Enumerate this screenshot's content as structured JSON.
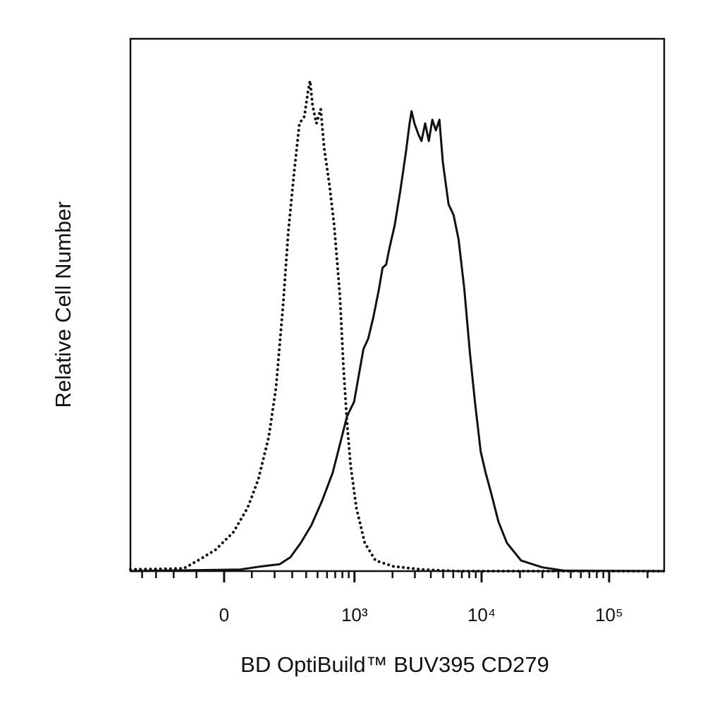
{
  "chart_data": {
    "type": "line",
    "x_label": "BD OptiBuild™ BUV395 CD279",
    "y_label": "Relative Cell Number",
    "xscale": "biexponential",
    "xlim": [
      -503,
      270000
    ],
    "ylim": [
      0,
      100
    ],
    "xticks": [
      0,
      {
        "value": 1000,
        "label": "10³"
      },
      {
        "value": 10000,
        "label": "10⁴"
      },
      {
        "value": 100000,
        "label": "10⁵"
      }
    ],
    "xminorticks": [
      -400,
      -300,
      -200,
      -100,
      100,
      200,
      300,
      400,
      500,
      600,
      700,
      800,
      900,
      2000,
      3000,
      4000,
      5000,
      6000,
      7000,
      8000,
      9000,
      20000,
      30000,
      40000,
      50000,
      60000,
      70000,
      80000,
      90000,
      200000
    ],
    "series": [
      {
        "color": "#111111",
        "dash": "dotted",
        "x": [
          -503,
          -153,
          -94,
          -30,
          32,
          84,
          126,
          172,
          207,
          246,
          275,
          310,
          349,
          386,
          415,
          432,
          455,
          490,
          532,
          568,
          626,
          687,
          764,
          816,
          872,
          931,
          1035,
          1206,
          1467,
          2026,
          3380,
          6430,
          270000
        ],
        "values": [
          0.3,
          0.5,
          2.0,
          4.0,
          7.3,
          11.9,
          17.2,
          25.2,
          34.4,
          50.3,
          63.6,
          74.2,
          84.1,
          85.4,
          90.1,
          92.1,
          87.4,
          84.1,
          86.8,
          79.5,
          72.8,
          64.9,
          51.7,
          38.4,
          27.8,
          19.9,
          11.9,
          5.3,
          2.0,
          0.9,
          0.3,
          0,
          0
        ]
      },
      {
        "color": "#111111",
        "dash": "solid",
        "x": [
          -503,
          57,
          141,
          226,
          288,
          359,
          443,
          546,
          668,
          764,
          872,
          993,
          1088,
          1177,
          1287,
          1411,
          1565,
          1670,
          1782,
          1901,
          2079,
          2304,
          2554,
          2726,
          2822,
          2976,
          3187,
          3380,
          3610,
          3860,
          4110,
          4380,
          4670,
          4970,
          5510,
          6030,
          6600,
          7320,
          8100,
          8870,
          9830,
          10750,
          11900,
          13550,
          15800,
          20400,
          30000,
          44000,
          270000
        ],
        "values": [
          0,
          0.3,
          0.9,
          1.3,
          2.6,
          5.3,
          8.6,
          13.2,
          18.5,
          23.8,
          29.1,
          31.8,
          37.1,
          41.7,
          43.7,
          47.7,
          53.0,
          57.0,
          57.6,
          60.9,
          64.9,
          71.5,
          78.8,
          84.1,
          86.4,
          84.1,
          82.1,
          80.8,
          84.1,
          80.8,
          84.8,
          82.8,
          84.8,
          76.8,
          68.9,
          66.9,
          62.3,
          53.0,
          41.1,
          31.8,
          22.5,
          18.5,
          14.6,
          9.3,
          5.3,
          2.0,
          0.7,
          0.1,
          0
        ]
      }
    ]
  }
}
